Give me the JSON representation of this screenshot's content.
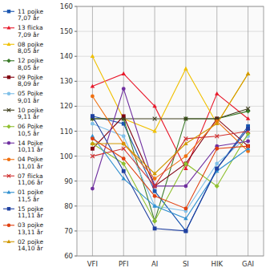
{
  "chart_data": {
    "type": "line",
    "categories": [
      "VFI",
      "PFI",
      "AI",
      "SI",
      "HIK",
      "GAI"
    ],
    "ylim": [
      60,
      160
    ],
    "yticks": [
      60,
      70,
      80,
      90,
      100,
      110,
      120,
      130,
      140,
      150,
      160
    ],
    "grid": true,
    "legend": "upper left",
    "series": [
      {
        "name": "11 pojke\n7,07 år",
        "color": "#1a56b0",
        "marker": "square",
        "line_style": "solid",
        "values": [
          116,
          113,
          86,
          70,
          95,
          112
        ]
      },
      {
        "name": "13 flicka\n7,09 år",
        "color": "#e8182a",
        "marker": "triangle",
        "line_style": "solid",
        "values": [
          128,
          133,
          120,
          95,
          125,
          115
        ]
      },
      {
        "name": "08 pojke\n8,05 år",
        "color": "#f0c000",
        "marker": "triangle",
        "line_style": "solid",
        "values": [
          140,
          115,
          110,
          135,
          113,
          133
        ]
      },
      {
        "name": "12 pojke\n8,05 år",
        "color": "#3a7a28",
        "marker": "diamond",
        "line_style": "solid",
        "values": [
          115,
          115,
          74,
          115,
          115,
          118
        ]
      },
      {
        "name": "09 Pojke\n8,09 år",
        "color": "#800010",
        "marker": "square",
        "line_style": "solid",
        "values": [
          103,
          116,
          88,
          97,
          115,
          104
        ]
      },
      {
        "name": "05 Pojke\n9,01 år",
        "color": "#80c0e8",
        "marker": "circle",
        "line_style": "solid",
        "values": [
          113,
          108,
          80,
          78,
          97,
          108
        ]
      },
      {
        "name": "10 pojke\n9,11 år",
        "color": "#404020",
        "marker": "x",
        "line_style": "solid",
        "values": [
          115,
          115,
          115,
          115,
          115,
          119
        ]
      },
      {
        "name": "06 Pojke\n10,5 år",
        "color": "#90c030",
        "marker": "diamond",
        "line_style": "solid",
        "values": [
          105,
          97,
          74,
          97,
          88,
          109
        ]
      },
      {
        "name": "14 Pojke\n10,11 år",
        "color": "#7030a0",
        "marker": "circle",
        "line_style": "solid",
        "values": [
          87,
          127,
          88,
          88,
          104,
          106
        ]
      },
      {
        "name": "04 Pojke\n11,01 år",
        "color": "#f07010",
        "marker": "circle",
        "line_style": "solid",
        "values": [
          124,
          105,
          91,
          100,
          114,
          102
        ]
      },
      {
        "name": "07 flicka\n11,06 år",
        "color": "#d03030",
        "marker": "x",
        "line_style": "solid",
        "values": [
          100,
          103,
          88,
          107,
          108,
          110
        ]
      },
      {
        "name": "01 pojke\n11,5 år",
        "color": "#3090d0",
        "marker": "triangle",
        "line_style": "solid",
        "values": [
          108,
          91,
          80,
          75,
          94,
          103
        ]
      },
      {
        "name": "15 pojke\n11,11 år",
        "color": "#2040a0",
        "marker": "square",
        "line_style": "solid",
        "values": [
          116,
          94,
          71,
          70,
          95,
          111
        ]
      },
      {
        "name": "03 pojke\n13,11 år",
        "color": "#e04010",
        "marker": "circle",
        "line_style": "solid",
        "values": [
          107,
          99,
          84,
          79,
          103,
          104
        ]
      },
      {
        "name": "02 pojke\n14,10 år",
        "color": "#d09800",
        "marker": "triangle",
        "line_style": "solid",
        "values": [
          105,
          105,
          93,
          105,
          113,
          133
        ]
      }
    ]
  }
}
